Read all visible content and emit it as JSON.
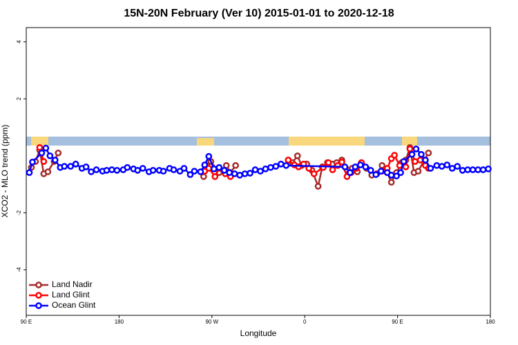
{
  "chart_data": {
    "type": "line",
    "title": "15N-20N February (Ver 10)   2015-01-01 to 2020-12-18",
    "x_label": "Longitude",
    "y_label": "XCO2 - MLO trend (ppm)",
    "xlim": [
      90,
      540
    ],
    "xticks": [
      {
        "value": 90,
        "label": "90 E"
      },
      {
        "value": 180,
        "label": "180"
      },
      {
        "value": 270,
        "label": "90 W"
      },
      {
        "value": 360,
        "label": "0"
      },
      {
        "value": 450,
        "label": "90 E"
      },
      {
        "value": 540,
        "label": "180"
      }
    ],
    "ylim": [
      -5.6,
      4.5
    ],
    "yticks": [
      -4,
      -2,
      2,
      4
    ],
    "legend": "lower left",
    "series": [
      {
        "name": "Land Nadir",
        "color": "#a52a2a",
        "x": [
          95,
          99,
          103,
          107,
          111,
          117,
          121,
          null,
          262,
          265,
          269,
          277,
          284,
          288,
          293,
          null,
          344,
          348,
          353,
          357,
          362,
          367,
          373,
          377,
          382,
          387,
          391,
          396,
          401,
          406,
          411,
          415,
          420,
          425,
          430,
          435,
          440,
          444,
          449,
          454,
          458,
          462,
          466,
          470,
          476,
          480
        ],
        "values": [
          -0.41,
          -0.2,
          0.2,
          -0.63,
          -0.56,
          -0.2,
          0.1,
          null,
          -0.73,
          -0.34,
          -0.2,
          -0.59,
          -0.34,
          -0.59,
          -0.34,
          null,
          -0.15,
          -0.24,
          0,
          -0.34,
          -0.29,
          -0.51,
          -1.07,
          -0.39,
          -0.24,
          -0.29,
          -0.24,
          -0.15,
          -0.49,
          -0.44,
          -0.56,
          -0.24,
          -0.44,
          -0.68,
          -0.63,
          -0.34,
          -0.59,
          -0.93,
          -0.59,
          -0.24,
          -0.15,
          0.29,
          -0.59,
          -0.54,
          -0.15,
          0.1
        ]
      },
      {
        "name": "Land Glint",
        "color": "#ff0000",
        "x": [
          103,
          107,
          null,
          263,
          267,
          273,
          277,
          283,
          288,
          null,
          344,
          350,
          354,
          359,
          364,
          369,
          378,
          383,
          387,
          392,
          396,
          401,
          405,
          410,
          415,
          null,
          430,
          435,
          440,
          444,
          447,
          452,
          458,
          462,
          467,
          472,
          477,
          480
        ],
        "values": [
          0.29,
          -0.2,
          null,
          -0.54,
          -0.44,
          -0.73,
          -0.44,
          -0.63,
          -0.73,
          null,
          -0.15,
          -0.32,
          -0.39,
          -0.29,
          -0.44,
          -0.63,
          -0.41,
          -0.24,
          -0.49,
          -0.34,
          -0.22,
          -0.73,
          -0.59,
          -0.44,
          -0.24,
          null,
          -0.63,
          -0.54,
          -0.44,
          -0.1,
          0.02,
          -0.34,
          -0.39,
          0.24,
          -0.2,
          -0.15,
          -0.34,
          -0.44
        ]
      },
      {
        "name": "Ocean Glint",
        "color": "#0000ff",
        "x": [
          93,
          96,
          105,
          109,
          113,
          118,
          123,
          127,
          133,
          138,
          144,
          148,
          153,
          158,
          164,
          168,
          173,
          178,
          184,
          188,
          194,
          198,
          203,
          209,
          213,
          219,
          223,
          229,
          233,
          239,
          243,
          249,
          253,
          259,
          263,
          267,
          272,
          277,
          282,
          287,
          292,
          297,
          302,
          307,
          312,
          317,
          322,
          327,
          332,
          337,
          342,
          399,
          404,
          409,
          414,
          419,
          424,
          429,
          434,
          440,
          444,
          449,
          453,
          456,
          464,
          468,
          473,
          477,
          482,
          488,
          493,
          498,
          503,
          508,
          513,
          518,
          523,
          528,
          533,
          538
        ],
        "values": [
          -0.59,
          -0.22,
          0.1,
          0.27,
          0,
          -0.15,
          -0.41,
          -0.37,
          -0.37,
          -0.29,
          -0.44,
          -0.39,
          -0.56,
          -0.49,
          -0.54,
          -0.51,
          -0.49,
          -0.51,
          -0.49,
          -0.41,
          -0.46,
          -0.51,
          -0.44,
          -0.56,
          -0.51,
          -0.51,
          -0.54,
          -0.44,
          -0.49,
          -0.54,
          -0.44,
          -0.66,
          -0.54,
          -0.56,
          -0.32,
          -0.02,
          -0.46,
          -0.41,
          -0.51,
          -0.59,
          -0.63,
          -0.68,
          -0.63,
          -0.61,
          -0.49,
          -0.54,
          -0.46,
          -0.41,
          -0.37,
          -0.29,
          -0.34,
          -0.39,
          -0.59,
          -0.39,
          -0.32,
          -0.39,
          -0.51,
          -0.66,
          -0.54,
          -0.59,
          -0.68,
          -0.71,
          -0.59,
          -0.2,
          0.05,
          0.24,
          0.05,
          -0.15,
          -0.44,
          -0.34,
          -0.37,
          -0.32,
          -0.44,
          -0.37,
          -0.51,
          -0.49,
          -0.49,
          -0.49,
          -0.49,
          -0.46
        ]
      }
    ]
  }
}
